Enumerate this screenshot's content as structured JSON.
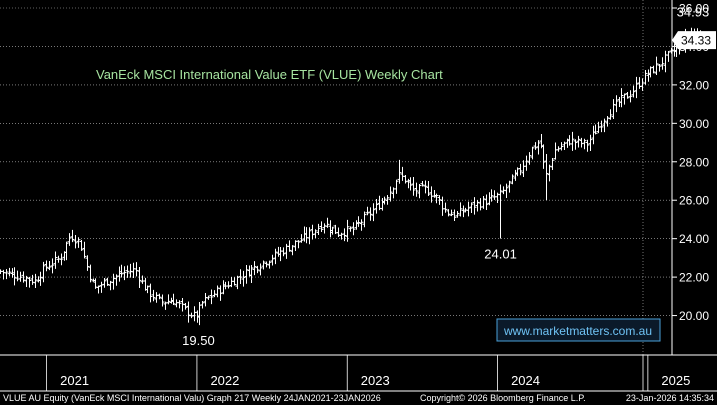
{
  "chart_data": {
    "type": "ohlc",
    "title": "VanEck MSCI International Value ETF (VLUE) Weekly Chart",
    "ylim": [
      18.0,
      36.0
    ],
    "y_ticks": [
      "36.00",
      "34.00",
      "32.00",
      "30.00",
      "28.00",
      "26.00",
      "24.00",
      "22.00",
      "20.00"
    ],
    "x_labels": [
      "2021",
      "2022",
      "2023",
      "2024",
      "2025"
    ],
    "x_label_positions": [
      0.0,
      1.0,
      2.0,
      3.0,
      4.0
    ],
    "x_range": [
      -0.35,
      4.42
    ],
    "last_price": "34.33",
    "annotations": [
      {
        "label": "34.93",
        "x": 4.26,
        "value": 34.93
      },
      {
        "label": "24.01",
        "x": 2.98,
        "value": 24.01
      },
      {
        "label": "19.50",
        "x": 0.97,
        "value": 19.5
      }
    ],
    "anchors": [
      [
        -0.35,
        22.3
      ],
      [
        -0.2,
        22.0
      ],
      [
        -0.12,
        21.8
      ],
      [
        -0.05,
        22.5
      ],
      [
        0.05,
        23.0
      ],
      [
        0.12,
        24.2
      ],
      [
        0.18,
        23.8
      ],
      [
        0.24,
        22.2
      ],
      [
        0.28,
        21.4
      ],
      [
        0.36,
        21.8
      ],
      [
        0.46,
        22.2
      ],
      [
        0.55,
        22.4
      ],
      [
        0.6,
        21.6
      ],
      [
        0.64,
        21.2
      ],
      [
        0.72,
        20.7
      ],
      [
        0.8,
        20.8
      ],
      [
        0.88,
        20.3
      ],
      [
        0.95,
        19.9
      ],
      [
        1.0,
        20.7
      ],
      [
        1.1,
        21.3
      ],
      [
        1.2,
        21.8
      ],
      [
        1.32,
        22.4
      ],
      [
        1.45,
        23.0
      ],
      [
        1.58,
        23.6
      ],
      [
        1.7,
        24.2
      ],
      [
        1.8,
        24.8
      ],
      [
        1.9,
        24.3
      ],
      [
        2.0,
        24.5
      ],
      [
        2.08,
        25.1
      ],
      [
        2.16,
        25.7
      ],
      [
        2.24,
        26.4
      ],
      [
        2.3,
        27.3
      ],
      [
        2.34,
        27.1
      ],
      [
        2.4,
        26.5
      ],
      [
        2.48,
        26.6
      ],
      [
        2.56,
        26.1
      ],
      [
        2.62,
        25.4
      ],
      [
        2.68,
        25.2
      ],
      [
        2.74,
        25.5
      ],
      [
        2.82,
        25.8
      ],
      [
        2.9,
        26.0
      ],
      [
        2.98,
        26.3
      ],
      [
        3.05,
        27.0
      ],
      [
        3.12,
        27.7
      ],
      [
        3.18,
        28.6
      ],
      [
        3.24,
        29.1
      ],
      [
        3.28,
        27.2
      ],
      [
        3.34,
        28.6
      ],
      [
        3.44,
        29.1
      ],
      [
        3.55,
        28.9
      ],
      [
        3.62,
        29.7
      ],
      [
        3.7,
        30.6
      ],
      [
        3.78,
        31.2
      ],
      [
        3.85,
        31.6
      ],
      [
        3.9,
        32.1
      ],
      [
        3.96,
        32.6
      ],
      [
        4.04,
        33.1
      ],
      [
        4.12,
        33.7
      ],
      [
        4.2,
        34.3
      ],
      [
        4.26,
        34.7
      ],
      [
        4.3,
        34.4
      ],
      [
        4.34,
        34.33
      ]
    ],
    "overrides": [
      {
        "x": 2.98,
        "low": 24.01
      },
      {
        "x": 0.97,
        "low": 19.5
      },
      {
        "x": 3.29,
        "low": 26.0
      },
      {
        "x": 2.3,
        "high": 28.1
      },
      {
        "x": 4.26,
        "high": 34.93
      }
    ]
  },
  "footer": {
    "left": "VLUE AU Equity (VanEck MSCI International Valu) Graph 217 Weekly 24JAN2021-23JAN2026",
    "center": "Copyright© 2026 Bloomberg Finance L.P.",
    "right": "23-Jan-2026 14:35:34"
  },
  "watermark": "www.marketmatters.com.au",
  "colors": {
    "background": "#000000",
    "bars": "#ffffff",
    "grid": "#ffffff",
    "title": "#a6e3a0",
    "watermark_border": "#4aa0d8"
  }
}
